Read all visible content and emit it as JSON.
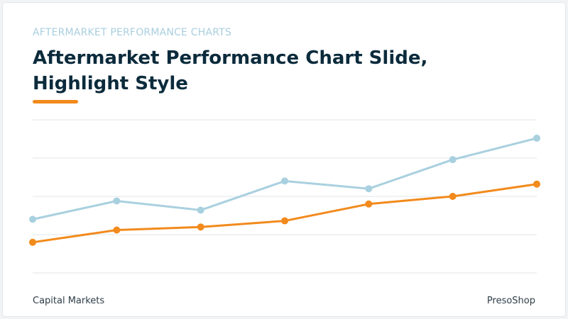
{
  "slide": {
    "eyebrow": "AFTERMARKET PERFORMANCE CHARTS",
    "title": "Aftermarket Performance Chart Slide, Highlight Style",
    "footer_left": "Capital Markets",
    "footer_right": "PresoShop"
  },
  "colors": {
    "accent": "#f28a1c",
    "highlight_series": "#a9d0df",
    "title": "#0b2b3c",
    "grid": "#e1e5e8"
  },
  "chart_data": {
    "type": "line",
    "x": [
      1,
      2,
      3,
      4,
      5,
      6,
      7
    ],
    "ylim": [
      0,
      100
    ],
    "grid": true,
    "gridlines": [
      0,
      25,
      50,
      75,
      100
    ],
    "series": [
      {
        "color": "#a9d0df",
        "values": [
          35,
          47,
          41,
          60,
          55,
          74,
          88
        ]
      },
      {
        "color": "#f28a1c",
        "values": [
          20,
          28,
          30,
          34,
          45,
          50,
          58
        ]
      }
    ]
  }
}
